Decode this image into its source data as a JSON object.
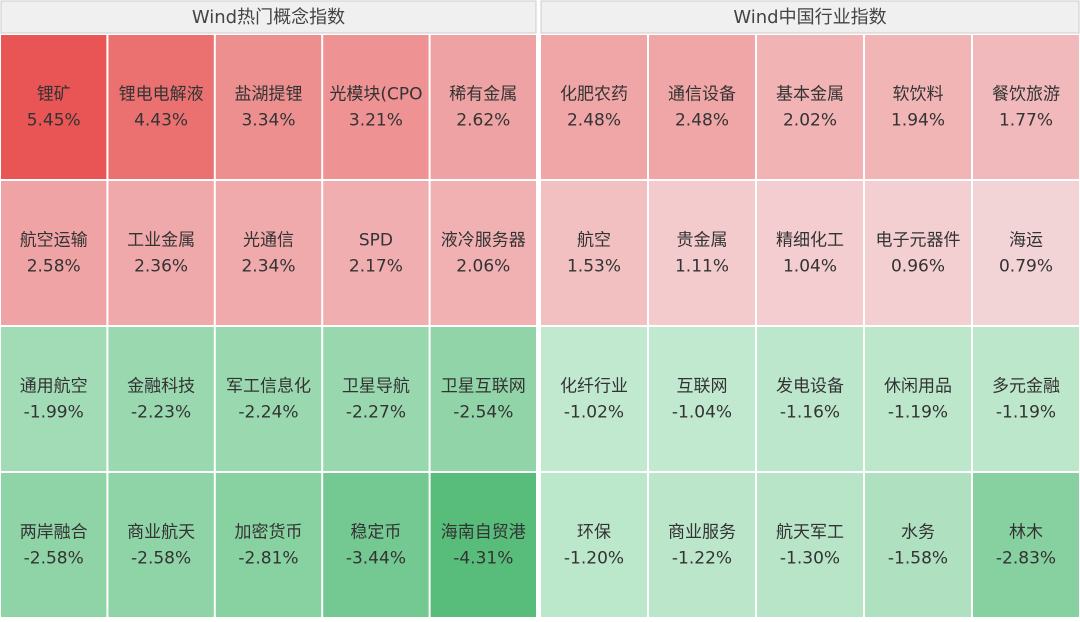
{
  "chart_data": [
    {
      "type": "heatmap",
      "title": "Wind热门概念指数",
      "categories": [
        "锂矿",
        "锂电电解液",
        "盐湖提锂",
        "光模块(CPO",
        "稀有金属",
        "航空运输",
        "工业金属",
        "光通信",
        "SPD",
        "液冷服务器",
        "通用航空",
        "金融科技",
        "军工信息化",
        "卫星导航",
        "卫星互联网",
        "两岸融合",
        "商业航天",
        "加密货币",
        "稳定币",
        "海南自贸港"
      ],
      "values": [
        5.45,
        4.43,
        3.34,
        3.21,
        2.62,
        2.58,
        2.36,
        2.34,
        2.17,
        2.06,
        -1.99,
        -2.23,
        -2.24,
        -2.27,
        -2.54,
        -2.58,
        -2.58,
        -2.81,
        -3.44,
        -4.31
      ],
      "value_labels": [
        "5.45%",
        "4.43%",
        "3.34%",
        "3.21%",
        "2.62%",
        "2.58%",
        "2.36%",
        "2.34%",
        "2.17%",
        "2.06%",
        "-1.99%",
        "-2.23%",
        "-2.24%",
        "-2.27%",
        "-2.54%",
        "-2.58%",
        "-2.58%",
        "-2.81%",
        "-3.44%",
        "-4.31%"
      ]
    },
    {
      "type": "heatmap",
      "title": "Wind中国行业指数",
      "categories": [
        "化肥农药",
        "通信设备",
        "基本金属",
        "软饮料",
        "餐饮旅游",
        "航空",
        "贵金属",
        "精细化工",
        "电子元器件",
        "海运",
        "化纤行业",
        "互联网",
        "发电设备",
        "休闲用品",
        "多元金融",
        "环保",
        "商业服务",
        "航天军工",
        "水务",
        "林木"
      ],
      "values": [
        2.48,
        2.48,
        2.02,
        1.94,
        1.77,
        1.53,
        1.11,
        1.04,
        0.96,
        0.79,
        -1.02,
        -1.04,
        -1.16,
        -1.19,
        -1.19,
        -1.2,
        -1.22,
        -1.3,
        -1.58,
        -2.83
      ],
      "value_labels": [
        "2.48%",
        "2.48%",
        "2.02%",
        "1.94%",
        "1.77%",
        "1.53%",
        "1.11%",
        "1.04%",
        "0.96%",
        "0.79%",
        "-1.02%",
        "-1.04%",
        "-1.16%",
        "-1.19%",
        "-1.19%",
        "-1.20%",
        "-1.22%",
        "-1.30%",
        "-1.58%",
        "-2.83%"
      ]
    }
  ]
}
